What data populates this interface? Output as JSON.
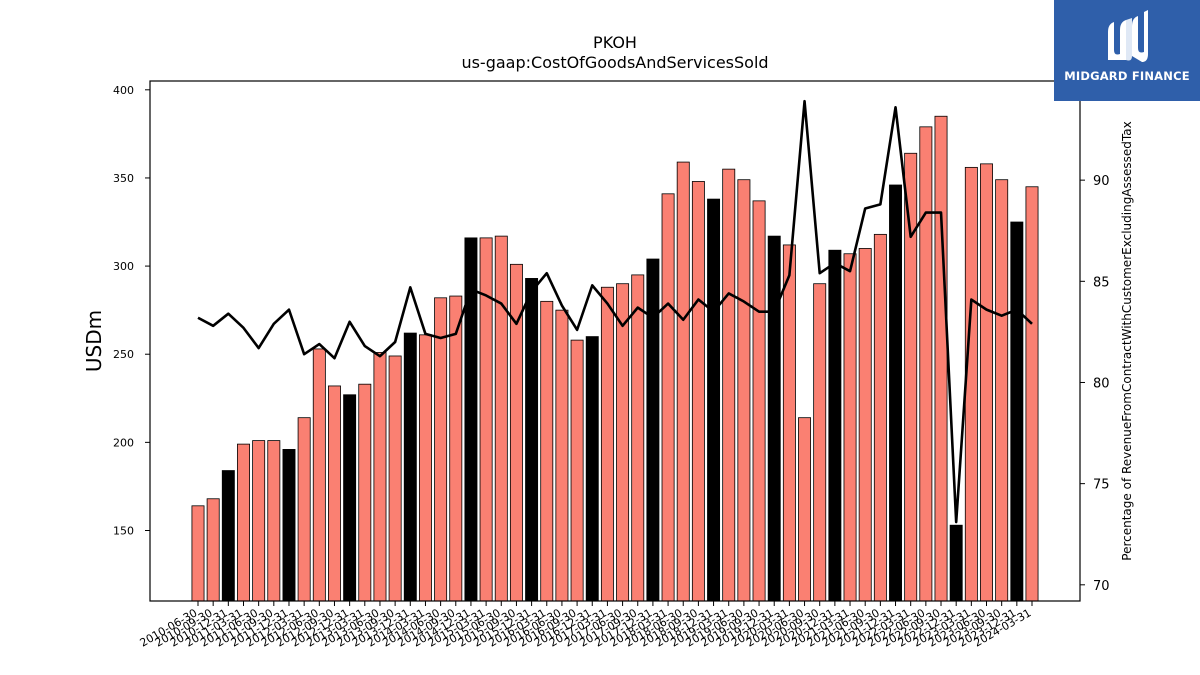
{
  "brand": {
    "name": "MIDGARD FINANCE"
  },
  "chart_data": {
    "type": "bar+line",
    "title": "PKOH",
    "subtitle": "us-gaap:CostOfGoodsAndServicesSold",
    "ylabel": "USDm",
    "y2label": "Percentage of RevenueFromContractWithCustomerExcludingAssessedTax",
    "ylim": [
      110,
      405
    ],
    "y2lim": [
      69.2,
      94.9
    ],
    "yticks": [
      150,
      200,
      250,
      300,
      350,
      400
    ],
    "y2ticks": [
      70,
      75,
      80,
      85,
      90
    ],
    "colors": {
      "bar": "#fa8072",
      "bar_q4": "#000000",
      "line": "#000000"
    },
    "categories": [
      "2010-06-30",
      "2010-09-30",
      "2010-12-31",
      "2011-03-31",
      "2011-06-30",
      "2011-09-30",
      "2011-12-31",
      "2012-03-31",
      "2012-06-30",
      "2012-09-30",
      "2012-12-31",
      "2013-03-31",
      "2013-06-30",
      "2013-09-30",
      "2013-12-31",
      "2014-03-31",
      "2014-06-30",
      "2014-09-30",
      "2014-12-31",
      "2015-03-31",
      "2015-06-30",
      "2015-09-30",
      "2015-12-31",
      "2016-03-31",
      "2016-06-30",
      "2016-09-30",
      "2016-12-31",
      "2017-03-31",
      "2017-06-30",
      "2017-09-30",
      "2017-12-31",
      "2018-03-31",
      "2018-06-30",
      "2018-09-30",
      "2018-12-31",
      "2019-03-31",
      "2019-06-30",
      "2019-09-30",
      "2019-12-31",
      "2020-03-31",
      "2020-06-30",
      "2020-09-30",
      "2020-12-31",
      "2021-03-31",
      "2021-06-30",
      "2021-09-30",
      "2021-12-31",
      "2022-03-31",
      "2022-06-30",
      "2022-09-30",
      "2022-12-31",
      "2023-03-31",
      "2023-06-30",
      "2023-09-30",
      "2023-12-31",
      "2024-03-31"
    ],
    "series": [
      {
        "type": "bar",
        "values": [
          164,
          168,
          184,
          199,
          201,
          201,
          196,
          214,
          253,
          232,
          227,
          233,
          251,
          249,
          262,
          261,
          282,
          283,
          316,
          316,
          317,
          301,
          293,
          280,
          275,
          258,
          260,
          288,
          290,
          295,
          304,
          341,
          359,
          348,
          338,
          355,
          349,
          337,
          317,
          312,
          214,
          290,
          309,
          307,
          310,
          318,
          346,
          364,
          379,
          385,
          153,
          356,
          358,
          349,
          325,
          345
        ],
        "highlight": [
          false,
          false,
          true,
          false,
          false,
          false,
          true,
          false,
          false,
          false,
          true,
          false,
          false,
          false,
          true,
          false,
          false,
          false,
          true,
          false,
          false,
          false,
          true,
          false,
          false,
          false,
          true,
          false,
          false,
          false,
          true,
          false,
          false,
          false,
          true,
          false,
          false,
          false,
          true,
          false,
          false,
          false,
          true,
          false,
          false,
          false,
          true,
          false,
          false,
          false,
          true,
          false,
          false,
          false,
          true,
          false
        ]
      },
      {
        "type": "line",
        "axis": "right",
        "values": [
          83.2,
          82.8,
          83.4,
          82.7,
          81.7,
          82.9,
          83.6,
          81.4,
          81.9,
          81.2,
          83.0,
          81.8,
          81.3,
          82.0,
          84.7,
          82.4,
          82.2,
          82.4,
          84.6,
          84.3,
          83.9,
          82.9,
          84.5,
          85.4,
          83.8,
          82.6,
          84.8,
          83.9,
          82.8,
          83.7,
          83.2,
          83.9,
          83.1,
          84.1,
          83.5,
          84.4,
          84.0,
          83.5,
          83.5,
          85.3,
          93.9,
          85.4,
          85.9,
          85.5,
          88.6,
          88.8,
          93.6,
          87.2,
          88.4,
          88.4,
          73.1,
          84.1,
          83.6,
          83.3,
          83.6,
          82.9
        ]
      }
    ]
  }
}
